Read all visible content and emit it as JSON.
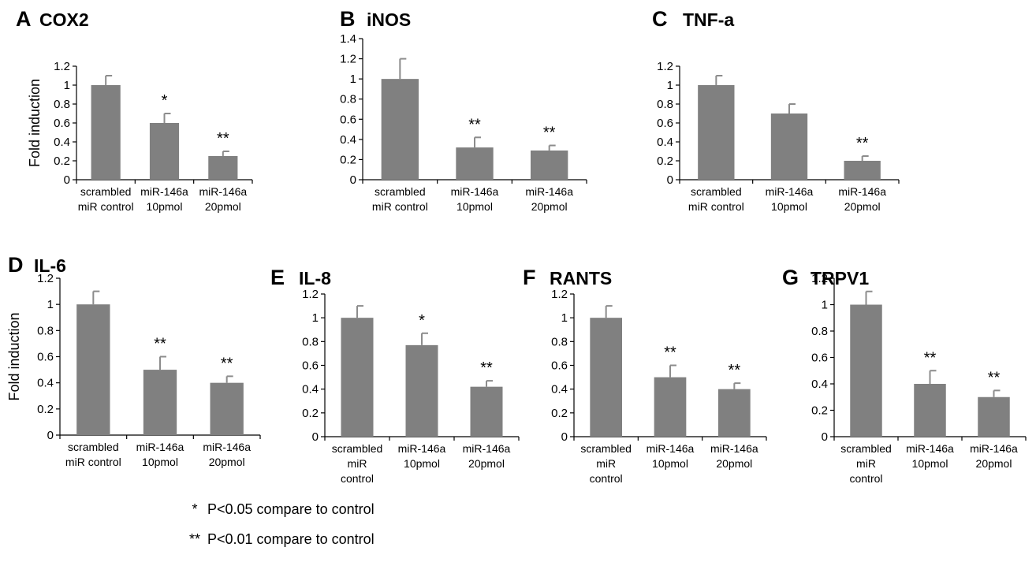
{
  "theme": {
    "bar_color": "#808080",
    "errorbar_color": "#8c8c8c",
    "axis_color": "#000000"
  },
  "legend": {
    "items": [
      {
        "symbol": "*",
        "text": "P<0.05 compare to control"
      },
      {
        "symbol": "**",
        "text": "P<0.01 compare to control"
      }
    ]
  },
  "chart_data": [
    {
      "panel": "A",
      "type": "bar",
      "title": "COX2",
      "ylabel": "Fold induction",
      "ylim": [
        0,
        1.2
      ],
      "yticks": [
        0,
        0.2,
        0.4,
        0.6,
        0.8,
        1,
        1.2
      ],
      "categories": [
        [
          "scrambled",
          "miR control"
        ],
        [
          "miR-146a",
          "10pmol"
        ],
        [
          "miR-146a",
          "20pmol"
        ]
      ],
      "values": [
        1.0,
        0.6,
        0.25
      ],
      "errors": [
        0.1,
        0.1,
        0.05
      ],
      "significance": [
        "",
        "*",
        "**"
      ]
    },
    {
      "panel": "B",
      "type": "bar",
      "title": "iNOS",
      "ylabel": "",
      "ylim": [
        0,
        1.4
      ],
      "yticks": [
        0,
        0.2,
        0.4,
        0.6,
        0.8,
        1,
        1.2,
        1.4
      ],
      "categories": [
        [
          "scrambled",
          "miR control"
        ],
        [
          "miR-146a",
          "10pmol"
        ],
        [
          "miR-146a",
          "20pmol"
        ]
      ],
      "values": [
        1.0,
        0.32,
        0.29
      ],
      "errors": [
        0.2,
        0.1,
        0.05
      ],
      "significance": [
        "",
        "**",
        "**"
      ]
    },
    {
      "panel": "C",
      "type": "bar",
      "title": "TNF-a",
      "ylabel": "",
      "ylim": [
        0,
        1.2
      ],
      "yticks": [
        0,
        0.2,
        0.4,
        0.6,
        0.8,
        1,
        1.2
      ],
      "categories": [
        [
          "scrambled",
          "miR control"
        ],
        [
          "miR-146a",
          "10pmol"
        ],
        [
          "miR-146a",
          "20pmol"
        ]
      ],
      "values": [
        1.0,
        0.7,
        0.2
      ],
      "errors": [
        0.1,
        0.1,
        0.05
      ],
      "significance": [
        "",
        "",
        "**"
      ]
    },
    {
      "panel": "D",
      "type": "bar",
      "title": "IL-6",
      "ylabel": "Fold induction",
      "ylim": [
        0,
        1.2
      ],
      "yticks": [
        0,
        0.2,
        0.4,
        0.6,
        0.8,
        1,
        1.2
      ],
      "categories": [
        [
          "scrambled",
          "miR control"
        ],
        [
          "miR-146a",
          "10pmol"
        ],
        [
          "miR-146a",
          "20pmol"
        ]
      ],
      "values": [
        1.0,
        0.5,
        0.4
      ],
      "errors": [
        0.1,
        0.1,
        0.05
      ],
      "significance": [
        "",
        "**",
        "**"
      ]
    },
    {
      "panel": "E",
      "type": "bar",
      "title": "IL-8",
      "ylabel": "",
      "ylim": [
        0,
        1.2
      ],
      "yticks": [
        0,
        0.2,
        0.4,
        0.6,
        0.8,
        1,
        1.2
      ],
      "categories": [
        [
          "scrambled",
          "miR",
          "control"
        ],
        [
          "miR-146a",
          "10pmol"
        ],
        [
          "miR-146a",
          "20pmol"
        ]
      ],
      "values": [
        1.0,
        0.77,
        0.42
      ],
      "errors": [
        0.1,
        0.1,
        0.05
      ],
      "significance": [
        "",
        "*",
        "**"
      ]
    },
    {
      "panel": "F",
      "type": "bar",
      "title": "RANTS",
      "ylabel": "",
      "ylim": [
        0,
        1.2
      ],
      "yticks": [
        0,
        0.2,
        0.4,
        0.6,
        0.8,
        1,
        1.2
      ],
      "categories": [
        [
          "scrambled",
          "miR",
          "control"
        ],
        [
          "miR-146a",
          "10pmol"
        ],
        [
          "miR-146a",
          "20pmol"
        ]
      ],
      "values": [
        1.0,
        0.5,
        0.4
      ],
      "errors": [
        0.1,
        0.1,
        0.05
      ],
      "significance": [
        "",
        "**",
        "**"
      ]
    },
    {
      "panel": "G",
      "type": "bar",
      "title": "TRPV1",
      "ylabel": "",
      "ylim": [
        0,
        1.2
      ],
      "yticks": [
        0,
        0.2,
        0.4,
        0.6,
        0.8,
        1,
        1.2
      ],
      "categories": [
        [
          "scrambled",
          "miR",
          "control"
        ],
        [
          "miR-146a",
          "10pmol"
        ],
        [
          "miR-146a",
          "20pmol"
        ]
      ],
      "values": [
        1.0,
        0.4,
        0.3
      ],
      "errors": [
        0.1,
        0.1,
        0.05
      ],
      "significance": [
        "",
        "**",
        "**"
      ]
    }
  ]
}
